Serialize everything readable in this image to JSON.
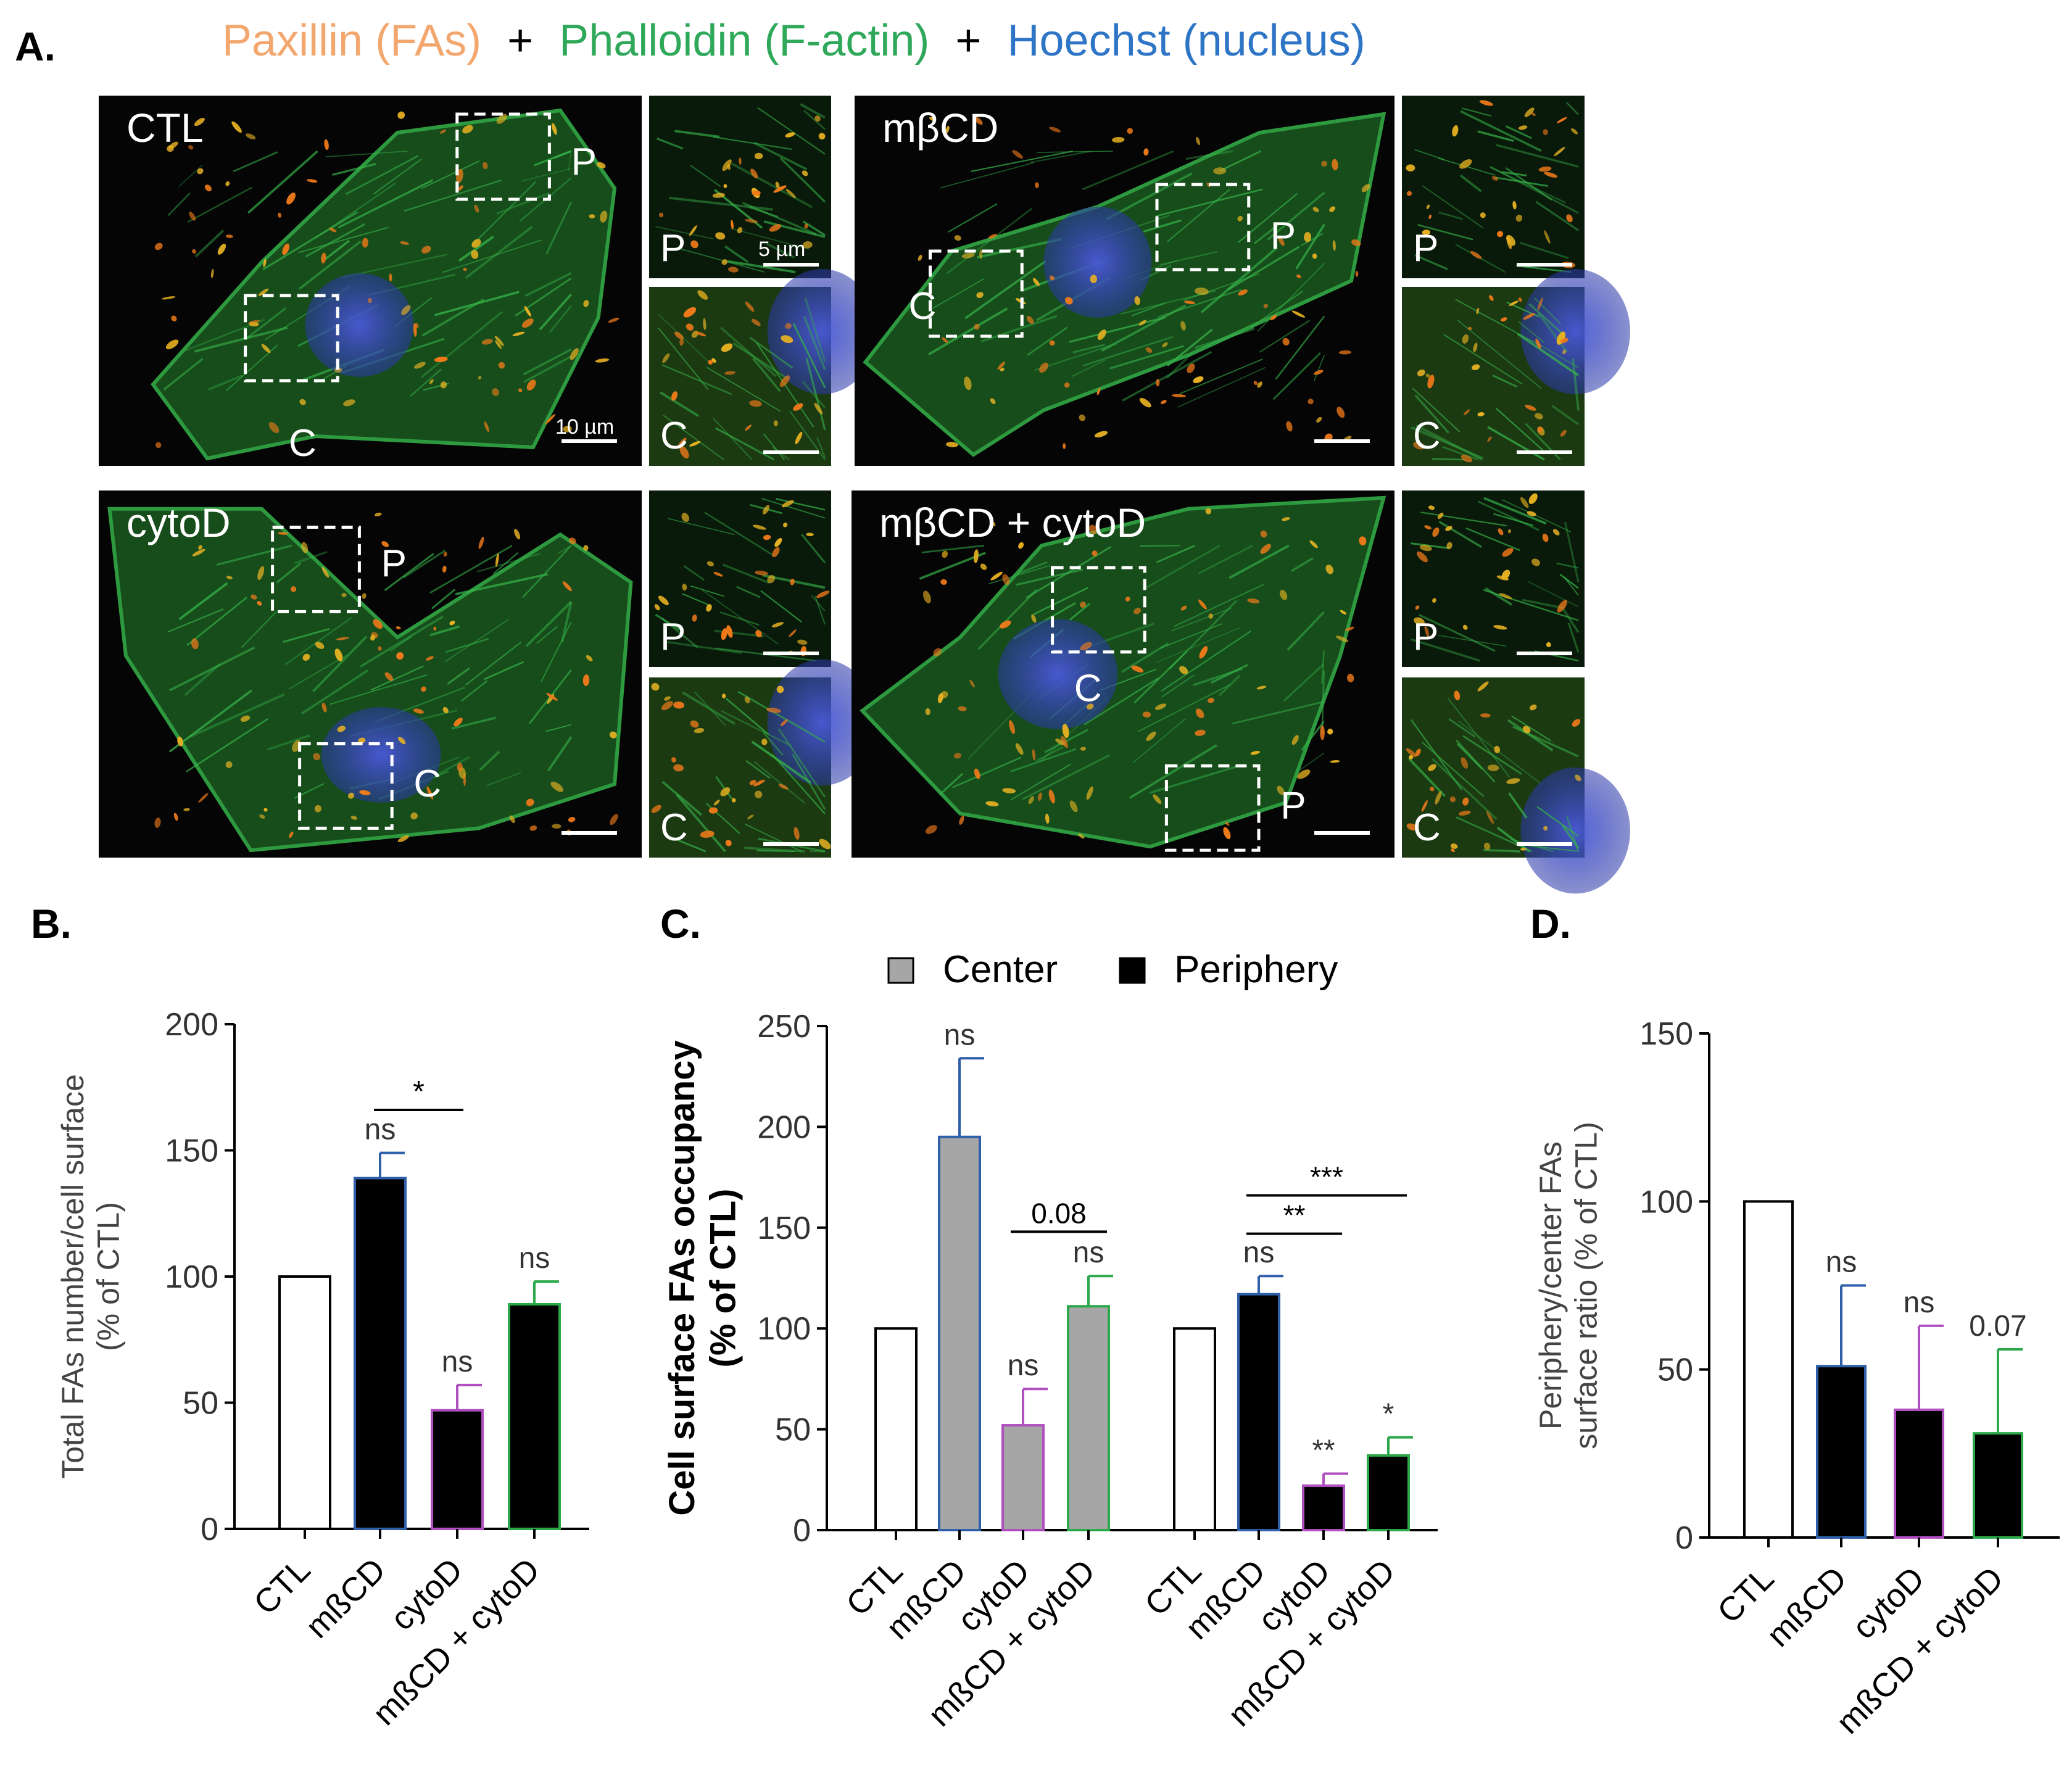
{
  "panel_letters": {
    "a": "A.",
    "b": "B.",
    "c": "C.",
    "d": "D."
  },
  "header": {
    "paxillin": "Paxillin (FAs)",
    "plus1": "+",
    "phalloidin": "Phalloidin (F-actin)",
    "plus2": "+",
    "hoechst": "Hoechst (nucleus)",
    "colors": {
      "paxillin": "#f2a76e",
      "phalloidin": "#2fa85a",
      "hoechst": "#2e75c6",
      "plus": "#000000"
    }
  },
  "micrographs": {
    "conditions": [
      "CTL",
      "mβCD",
      "cytoD",
      "mβCD + cytoD"
    ],
    "inset_p": "P",
    "inset_c": "C",
    "scale_main": "10 µm",
    "scale_inset": "5 µm",
    "colors": {
      "actin": "#36b44a",
      "fa": "#e8b222",
      "nucleus": "#3a49c8",
      "background": "#050505"
    }
  },
  "chart_data": [
    {
      "type": "bar",
      "panel": "B",
      "ylabel_line1": "Total FAs number/cell surface",
      "ylabel_line2": "(% of CTL)",
      "categories": [
        "CTL",
        "mßCD",
        "cytoD",
        "mßCD + cytoD"
      ],
      "values": [
        100,
        139,
        47,
        89
      ],
      "errors": [
        0,
        10,
        10,
        9
      ],
      "ylim": [
        0,
        200
      ],
      "yticks": [
        0,
        50,
        100,
        150,
        200
      ],
      "fills": [
        "#ffffff",
        "#000000",
        "#000000",
        "#000000"
      ],
      "edges": [
        "#000000",
        "#2e5fa8",
        "#b050c0",
        "#2aa84a"
      ],
      "bar_labels": [
        "",
        "ns",
        "ns",
        "ns"
      ],
      "brackets": [
        {
          "from": 1,
          "to": 2,
          "label": "*"
        }
      ]
    },
    {
      "type": "bar",
      "panel": "C",
      "ylabel_line1": "Cell surface FAs occupancy",
      "ylabel_line2": "(% of CTL)",
      "legend": [
        {
          "name": "Center",
          "color": "#a6a6a6"
        },
        {
          "name": "Periphery",
          "color": "#000000"
        }
      ],
      "categories": [
        "CTL",
        "mßCD",
        "cytoD",
        "mßCD + cytoD"
      ],
      "series": [
        {
          "name": "Center",
          "values": [
            100,
            195,
            52,
            111
          ],
          "errors": [
            0,
            39,
            18,
            15
          ],
          "fills": [
            "#ffffff",
            "#a6a6a6",
            "#a6a6a6",
            "#a6a6a6"
          ],
          "labels": [
            "",
            "ns",
            "ns",
            "ns"
          ]
        },
        {
          "name": "Periphery",
          "values": [
            100,
            117,
            22,
            37
          ],
          "errors": [
            0,
            9,
            6,
            9
          ],
          "fills": [
            "#ffffff",
            "#000000",
            "#000000",
            "#000000"
          ],
          "labels": [
            "",
            "ns",
            "**",
            "*"
          ]
        }
      ],
      "edges": [
        "#000000",
        "#2e5fa8",
        "#b050c0",
        "#2aa84a"
      ],
      "ylim": [
        0,
        250
      ],
      "yticks": [
        0,
        50,
        100,
        150,
        200,
        250
      ],
      "brackets": [
        {
          "group": 0,
          "from": 2,
          "to": 3,
          "label": "0.08"
        },
        {
          "group": 1,
          "from": 1,
          "to": 2,
          "label": "**"
        },
        {
          "group": 1,
          "from": 1,
          "to": 3,
          "label": "***"
        }
      ]
    },
    {
      "type": "bar",
      "panel": "D",
      "ylabel_line1": "Periphery/center FAs",
      "ylabel_line2": "surface ratio (% of CTL)",
      "categories": [
        "CTL",
        "mßCD",
        "cytoD",
        "mßCD + cytoD"
      ],
      "values": [
        100,
        51,
        38,
        31
      ],
      "errors": [
        0,
        24,
        25,
        25
      ],
      "ylim": [
        0,
        150
      ],
      "yticks": [
        0,
        50,
        100,
        150
      ],
      "fills": [
        "#ffffff",
        "#000000",
        "#000000",
        "#000000"
      ],
      "edges": [
        "#000000",
        "#2e5fa8",
        "#b050c0",
        "#2aa84a"
      ],
      "bar_labels": [
        "",
        "ns",
        "ns",
        "0.07"
      ]
    }
  ]
}
